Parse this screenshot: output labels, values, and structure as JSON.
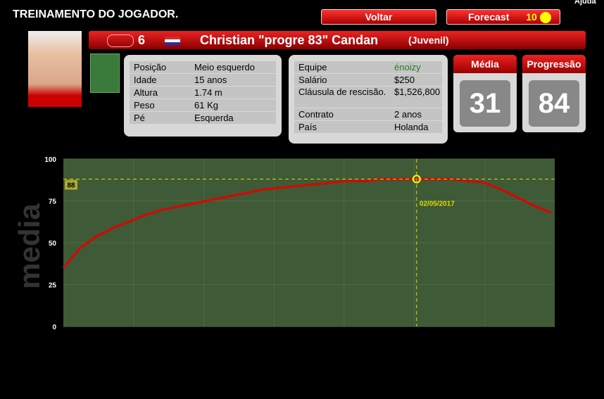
{
  "header": {
    "title": "TREINAMENTO DO JOGADOR.",
    "help": "Ajuda"
  },
  "buttons": {
    "back": "Voltar",
    "forecast": "Forecast",
    "forecast_count": "10"
  },
  "player": {
    "number": "6",
    "name": "Christian \"progre 83\" Candan",
    "category": "(Juvenil)"
  },
  "info_left": [
    [
      "Posição",
      "Meio esquerdo"
    ],
    [
      "Idade",
      "15 anos"
    ],
    [
      "Altura",
      "1.74 m"
    ],
    [
      "Peso",
      "61 Kg"
    ],
    [
      "Pé",
      "Esquerda"
    ]
  ],
  "info_right": [
    [
      "Equipe",
      "énoizy"
    ],
    [
      "Salário",
      "$250"
    ],
    [
      "Cláusula de rescisão.",
      "$1,526,800"
    ],
    [
      "Contrato",
      "2 anos"
    ],
    [
      "País",
      "Holanda"
    ]
  ],
  "stats": [
    {
      "label": "Média",
      "value": "31"
    },
    {
      "label": "Progressão",
      "value": "84"
    }
  ],
  "chart_data": {
    "type": "line",
    "y_label": "media",
    "ylim": [
      0,
      100
    ],
    "yticks": [
      0,
      25,
      50,
      75,
      100
    ],
    "color": "#e00000",
    "values": [
      35,
      47,
      54,
      59,
      63,
      67,
      70,
      72,
      74,
      76,
      78,
      80,
      82,
      83,
      84,
      85,
      86,
      87,
      87,
      88,
      88,
      88,
      88,
      88,
      87,
      86,
      82,
      77,
      72,
      68
    ],
    "reference": {
      "value": 88,
      "label": "88"
    },
    "marker_date": "02/05/2017"
  }
}
